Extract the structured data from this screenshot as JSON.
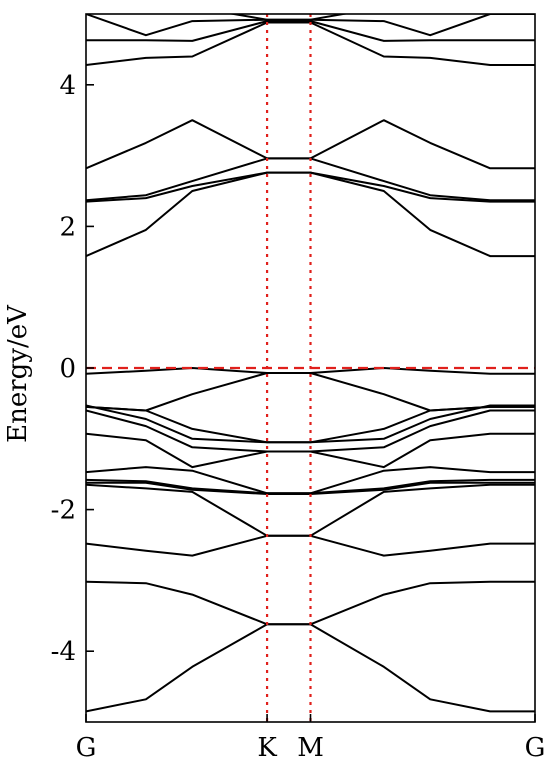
{
  "chart_data": {
    "type": "line",
    "title": "",
    "xlabel": "",
    "ylabel": "Energy/eV",
    "ylim": [
      -5.0,
      5.0
    ],
    "xlim": [
      0,
      1
    ],
    "grid": false,
    "legend": "none",
    "x_ticks": [
      {
        "label": "G",
        "x": 0.0
      },
      {
        "label": "K",
        "x": 0.4033
      },
      {
        "label": "M",
        "x": 0.5
      },
      {
        "label": "G",
        "x": 1.0
      }
    ],
    "y_ticks": [
      -4,
      -2,
      0,
      2,
      4
    ],
    "colors": {
      "bands": "#000000",
      "fermi": "#e0201c",
      "kpath": "#e0201c"
    },
    "fermi_level": 0,
    "kpath_lines": [
      0.4033,
      0.5
    ],
    "x": [
      0.0,
      0.1333,
      0.2367,
      0.4033,
      0.5,
      0.6633,
      0.7667,
      0.9,
      1.0
    ],
    "series": [
      {
        "values": [
          -4.85,
          -4.68,
          -4.22,
          -3.62,
          -3.62,
          -4.22,
          -4.68,
          -4.85,
          -4.85
        ]
      },
      {
        "values": [
          -3.02,
          -3.04,
          -3.2,
          -3.62,
          -3.62,
          -3.2,
          -3.04,
          -3.02,
          -3.02
        ]
      },
      {
        "values": [
          -2.48,
          -2.58,
          -2.65,
          -2.37,
          -2.37,
          -2.65,
          -2.58,
          -2.48,
          -2.48
        ]
      },
      {
        "values": [
          -1.65,
          -1.7,
          -1.75,
          -2.37,
          -2.37,
          -1.75,
          -1.7,
          -1.65,
          -1.65
        ]
      },
      {
        "values": [
          -1.62,
          -1.62,
          -1.72,
          -1.78,
          -1.78,
          -1.72,
          -1.62,
          -1.62,
          -1.62
        ]
      },
      {
        "values": [
          -1.58,
          -1.6,
          -1.7,
          -1.77,
          -1.77,
          -1.7,
          -1.6,
          -1.58,
          -1.58
        ]
      },
      {
        "values": [
          -1.47,
          -1.4,
          -1.45,
          -1.77,
          -1.77,
          -1.45,
          -1.4,
          -1.47,
          -1.47
        ]
      },
      {
        "values": [
          -0.93,
          -1.02,
          -1.4,
          -1.18,
          -1.18,
          -1.4,
          -1.02,
          -0.93,
          -0.93
        ]
      },
      {
        "values": [
          -0.6,
          -0.82,
          -1.12,
          -1.18,
          -1.18,
          -1.12,
          -0.82,
          -0.6,
          -0.6
        ]
      },
      {
        "values": [
          -0.53,
          -0.72,
          -1.0,
          -1.05,
          -1.05,
          -1.0,
          -0.72,
          -0.53,
          -0.53
        ]
      },
      {
        "values": [
          -0.55,
          -0.6,
          -0.86,
          -1.05,
          -1.05,
          -0.86,
          -0.6,
          -0.55,
          -0.55
        ]
      },
      {
        "values": [
          -0.55,
          -0.6,
          -0.37,
          -0.07,
          -0.07,
          -0.37,
          -0.6,
          -0.55,
          -0.55
        ]
      },
      {
        "values": [
          -0.08,
          -0.04,
          0.0,
          -0.07,
          -0.07,
          0.0,
          -0.04,
          -0.08,
          -0.08
        ]
      },
      {
        "values": [
          1.58,
          1.95,
          2.5,
          2.76,
          2.76,
          2.5,
          1.95,
          1.58,
          1.58
        ]
      },
      {
        "values": [
          2.35,
          2.4,
          2.57,
          2.76,
          2.76,
          2.57,
          2.4,
          2.35,
          2.35
        ]
      },
      {
        "values": [
          2.37,
          2.44,
          2.64,
          2.96,
          2.96,
          2.64,
          2.44,
          2.37,
          2.37
        ]
      },
      {
        "values": [
          2.82,
          3.18,
          3.5,
          2.96,
          2.96,
          3.5,
          3.18,
          2.82,
          2.82
        ]
      },
      {
        "values": [
          4.28,
          4.38,
          4.4,
          4.88,
          4.88,
          4.4,
          4.38,
          4.28,
          4.28
        ]
      },
      {
        "values": [
          4.63,
          4.63,
          4.62,
          4.9,
          4.9,
          4.62,
          4.63,
          4.63,
          4.63
        ]
      },
      {
        "values": [
          5.0,
          4.7,
          4.9,
          4.92,
          4.92,
          4.9,
          4.7,
          5.0,
          5.0
        ]
      },
      {
        "values": [
          5.3,
          5.2,
          5.1,
          4.92,
          4.92,
          5.1,
          5.2,
          5.3,
          5.3
        ]
      }
    ]
  }
}
